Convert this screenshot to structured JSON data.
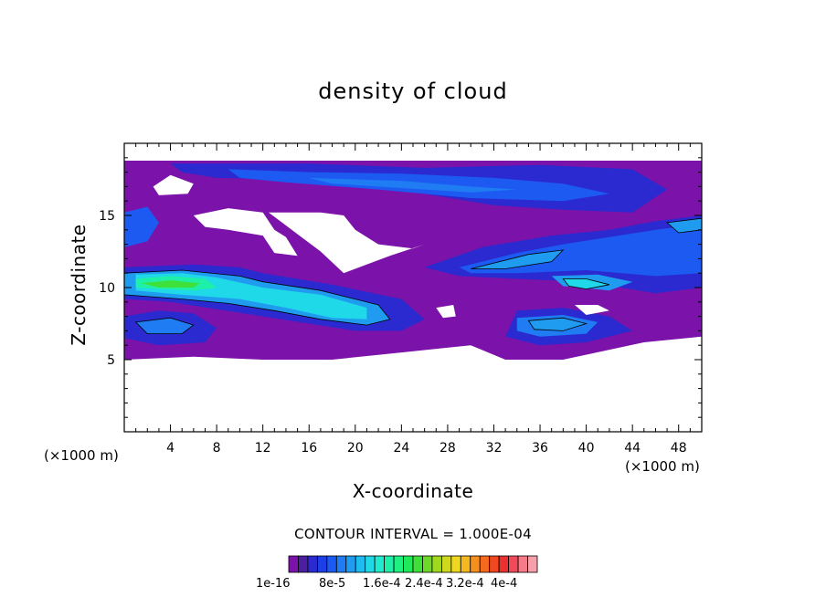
{
  "chart_data": {
    "type": "heatmap",
    "title": "density of cloud",
    "xlabel": "X-coordinate",
    "ylabel": "Z-coordinate",
    "x_unit_left": "(×1000 m)",
    "x_unit_right": "(×1000 m)",
    "xlim": [
      0,
      50
    ],
    "ylim": [
      0,
      20
    ],
    "xticks": [
      4,
      8,
      12,
      16,
      20,
      24,
      28,
      32,
      36,
      40,
      44,
      48
    ],
    "yticks": [
      5,
      10,
      15
    ],
    "contour_interval_text": "CONTOUR INTERVAL = 1.000E-04",
    "colorbar": {
      "labels": [
        "1e-16",
        "8e-5",
        "1.6e-4",
        "2.4e-4",
        "3.2e-4",
        "4e-4"
      ],
      "colors": [
        "#7b12a9",
        "#4a1fa0",
        "#2b2ad0",
        "#1f3fe6",
        "#1d5af2",
        "#1f7cf2",
        "#1f9cf0",
        "#1fbcef",
        "#1fd8e8",
        "#1feccf",
        "#1ff0a8",
        "#1ff080",
        "#1fe85a",
        "#3fe03a",
        "#6ed828",
        "#a0d81f",
        "#cfd81f",
        "#eed81f",
        "#f5b81f",
        "#f5901f",
        "#f56a1f",
        "#f0481f",
        "#ec2f2f",
        "#f04a5a",
        "#f57a8a",
        "#f5a0aa"
      ]
    },
    "regions": [
      {
        "level": 0,
        "color": "#7b12a9",
        "pts": [
          [
            0,
            18.8
          ],
          [
            50,
            18.8
          ],
          [
            50,
            6.6
          ],
          [
            45,
            6.2
          ],
          [
            38,
            5.0
          ],
          [
            33,
            5.0
          ],
          [
            30,
            6.0
          ],
          [
            24,
            5.5
          ],
          [
            18,
            5.0
          ],
          [
            12,
            5.0
          ],
          [
            6,
            5.2
          ],
          [
            0,
            5.0
          ]
        ]
      },
      {
        "level": 1,
        "color": "#2b2ad0",
        "pts": [
          [
            4,
            18.6
          ],
          [
            16,
            18.6
          ],
          [
            26,
            18.3
          ],
          [
            36,
            18.5
          ],
          [
            44,
            18.2
          ],
          [
            47,
            16.8
          ],
          [
            44,
            15.2
          ],
          [
            38,
            15.4
          ],
          [
            32,
            15.7
          ],
          [
            26,
            16.5
          ],
          [
            20,
            17.0
          ],
          [
            14,
            17.5
          ],
          [
            8,
            17.6
          ],
          [
            5,
            18.0
          ]
        ]
      },
      {
        "level": 2,
        "color": "#1d5af2",
        "pts": [
          [
            9,
            18.2
          ],
          [
            16,
            18.0
          ],
          [
            24,
            17.9
          ],
          [
            32,
            17.6
          ],
          [
            38,
            17.2
          ],
          [
            42,
            16.5
          ],
          [
            38,
            16.0
          ],
          [
            30,
            16.2
          ],
          [
            22,
            16.8
          ],
          [
            14,
            17.3
          ],
          [
            10,
            17.6
          ]
        ]
      },
      {
        "level": 3,
        "color": "#1f7cf2",
        "pts": [
          [
            16,
            17.6
          ],
          [
            24,
            17.4
          ],
          [
            30,
            17.0
          ],
          [
            34,
            16.8
          ],
          [
            30,
            16.6
          ],
          [
            24,
            16.9
          ],
          [
            18,
            17.2
          ]
        ]
      },
      {
        "level": 0,
        "color": "#1d5af2",
        "pts": [
          [
            0,
            15.2
          ],
          [
            2,
            15.6
          ],
          [
            3,
            14.5
          ],
          [
            2,
            13.2
          ],
          [
            0,
            12.8
          ]
        ]
      },
      {
        "level": 1,
        "color": "#2b2ad0",
        "pts": [
          [
            0,
            11.4
          ],
          [
            6,
            11.6
          ],
          [
            10,
            11.4
          ],
          [
            12,
            11.0
          ],
          [
            18,
            10.2
          ],
          [
            24,
            9.2
          ],
          [
            26,
            7.8
          ],
          [
            24,
            7.0
          ],
          [
            20,
            7.0
          ],
          [
            16,
            7.5
          ],
          [
            12,
            8.0
          ],
          [
            8,
            8.5
          ],
          [
            4,
            9.0
          ],
          [
            0,
            9.2
          ]
        ]
      },
      {
        "level": 2,
        "color": "#1f9cf0",
        "pts": [
          [
            0,
            11.0
          ],
          [
            5,
            11.2
          ],
          [
            10,
            10.8
          ],
          [
            12,
            10.4
          ],
          [
            17,
            9.8
          ],
          [
            22,
            8.8
          ],
          [
            23,
            7.8
          ],
          [
            21,
            7.4
          ],
          [
            17,
            7.8
          ],
          [
            13,
            8.4
          ],
          [
            9,
            8.9
          ],
          [
            5,
            9.2
          ],
          [
            0,
            9.5
          ]
        ]
      },
      {
        "level": 3,
        "color": "#1fd8e8",
        "pts": [
          [
            1,
            10.9
          ],
          [
            5,
            11.0
          ],
          [
            8,
            10.7
          ],
          [
            12,
            10.0
          ],
          [
            17,
            9.5
          ],
          [
            21,
            8.6
          ],
          [
            21,
            7.8
          ],
          [
            18,
            7.9
          ],
          [
            14,
            8.6
          ],
          [
            10,
            9.2
          ],
          [
            5,
            9.5
          ],
          [
            1,
            9.8
          ]
        ]
      },
      {
        "level": 4,
        "color": "#1ff0a8",
        "pts": [
          [
            1,
            10.6
          ],
          [
            4,
            10.8
          ],
          [
            7,
            10.6
          ],
          [
            8,
            10.0
          ],
          [
            6,
            9.8
          ],
          [
            3,
            9.9
          ],
          [
            1,
            10.0
          ]
        ]
      },
      {
        "level": 5,
        "color": "#3fe03a",
        "pts": [
          [
            1.5,
            10.3
          ],
          [
            4,
            10.5
          ],
          [
            6.5,
            10.3
          ],
          [
            6,
            10.0
          ],
          [
            3,
            10.0
          ]
        ]
      },
      {
        "level": 1,
        "color": "#2b2ad0",
        "pts": [
          [
            0,
            8.0
          ],
          [
            3,
            8.4
          ],
          [
            6,
            8.2
          ],
          [
            8,
            7.2
          ],
          [
            7,
            6.2
          ],
          [
            3,
            6.0
          ],
          [
            0,
            6.5
          ]
        ]
      },
      {
        "level": 2,
        "color": "#1f7cf2",
        "pts": [
          [
            1,
            7.6
          ],
          [
            4,
            7.9
          ],
          [
            6,
            7.4
          ],
          [
            5,
            6.8
          ],
          [
            2,
            6.8
          ]
        ]
      },
      {
        "level": 1,
        "color": "#2b2ad0",
        "pts": [
          [
            26,
            11.4
          ],
          [
            31,
            12.8
          ],
          [
            37,
            13.6
          ],
          [
            42,
            14.0
          ],
          [
            46,
            14.6
          ],
          [
            50,
            15.0
          ],
          [
            50,
            10.0
          ],
          [
            46,
            9.6
          ],
          [
            40,
            10.4
          ],
          [
            34,
            10.6
          ],
          [
            29,
            10.8
          ]
        ]
      },
      {
        "level": 2,
        "color": "#1d5af2",
        "pts": [
          [
            29,
            11.4
          ],
          [
            34,
            12.4
          ],
          [
            38,
            13.0
          ],
          [
            42,
            13.5
          ],
          [
            46,
            14.0
          ],
          [
            50,
            14.4
          ],
          [
            50,
            11.0
          ],
          [
            46,
            10.8
          ],
          [
            40,
            11.2
          ],
          [
            34,
            11.0
          ],
          [
            30,
            11.0
          ]
        ]
      },
      {
        "level": 3,
        "color": "#1f9cf0",
        "pts": [
          [
            30,
            11.3
          ],
          [
            35,
            12.3
          ],
          [
            38,
            12.6
          ],
          [
            37,
            11.8
          ],
          [
            33,
            11.3
          ]
        ]
      },
      {
        "level": 3,
        "color": "#1f9cf0",
        "pts": [
          [
            37,
            10.8
          ],
          [
            41,
            10.9
          ],
          [
            44,
            10.4
          ],
          [
            42,
            9.8
          ],
          [
            38,
            10.1
          ]
        ]
      },
      {
        "level": 3,
        "color": "#1fd8e8",
        "pts": [
          [
            38,
            10.6
          ],
          [
            40,
            10.6
          ],
          [
            42,
            10.2
          ],
          [
            40,
            9.9
          ],
          [
            38.5,
            10.1
          ]
        ]
      },
      {
        "level": 3,
        "color": "#1f9cf0",
        "pts": [
          [
            47,
            14.5
          ],
          [
            50,
            14.8
          ],
          [
            50,
            14.0
          ],
          [
            48,
            13.8
          ]
        ]
      },
      {
        "level": 1,
        "color": "#2b2ad0",
        "pts": [
          [
            34,
            8.4
          ],
          [
            38,
            8.6
          ],
          [
            42,
            8.0
          ],
          [
            44,
            7.0
          ],
          [
            40,
            6.2
          ],
          [
            36,
            6.0
          ],
          [
            33,
            6.6
          ]
        ]
      },
      {
        "level": 2,
        "color": "#1f7cf2",
        "pts": [
          [
            34,
            7.9
          ],
          [
            38,
            8.1
          ],
          [
            41,
            7.6
          ],
          [
            40,
            6.8
          ],
          [
            36,
            6.6
          ],
          [
            34,
            7.0
          ]
        ]
      },
      {
        "level": 3,
        "color": "#1f9cf0",
        "pts": [
          [
            35,
            7.7
          ],
          [
            38,
            7.9
          ],
          [
            40,
            7.5
          ],
          [
            38,
            7.0
          ],
          [
            35.5,
            7.1
          ]
        ]
      }
    ],
    "holes": [
      {
        "pts": [
          [
            2.5,
            17.0
          ],
          [
            4,
            17.8
          ],
          [
            6,
            17.2
          ],
          [
            5.5,
            16.5
          ],
          [
            3,
            16.4
          ]
        ]
      },
      {
        "pts": [
          [
            6,
            15.0
          ],
          [
            9,
            15.5
          ],
          [
            12,
            15.2
          ],
          [
            13,
            14.0
          ],
          [
            14,
            13.5
          ],
          [
            15,
            12.2
          ],
          [
            13,
            12.4
          ],
          [
            12,
            13.6
          ],
          [
            9,
            14.0
          ],
          [
            7,
            14.2
          ]
        ]
      },
      {
        "pts": [
          [
            12.5,
            15.2
          ],
          [
            17,
            15.2
          ],
          [
            19,
            15.0
          ],
          [
            20,
            14.0
          ],
          [
            22,
            13.0
          ],
          [
            25,
            12.7
          ],
          [
            26,
            13.0
          ],
          [
            23,
            12.2
          ],
          [
            19,
            11.0
          ],
          [
            17,
            12.5
          ],
          [
            14.5,
            14.0
          ]
        ]
      },
      {
        "pts": [
          [
            27,
            8.6
          ],
          [
            28.5,
            8.8
          ],
          [
            28.7,
            8.0
          ],
          [
            27.6,
            7.9
          ]
        ]
      },
      {
        "pts": [
          [
            39,
            8.8
          ],
          [
            41,
            8.8
          ],
          [
            42,
            8.4
          ],
          [
            40,
            8.1
          ]
        ]
      }
    ],
    "contour_lines": [
      {
        "pts": [
          [
            0,
            11.0
          ],
          [
            5,
            11.2
          ],
          [
            10,
            10.8
          ],
          [
            12,
            10.4
          ],
          [
            17,
            9.8
          ],
          [
            22,
            8.8
          ],
          [
            23,
            7.8
          ],
          [
            21,
            7.4
          ],
          [
            17,
            7.8
          ],
          [
            13,
            8.4
          ],
          [
            9,
            8.9
          ],
          [
            5,
            9.2
          ],
          [
            0,
            9.5
          ]
        ]
      },
      {
        "pts": [
          [
            30,
            11.3
          ],
          [
            35,
            12.3
          ],
          [
            38,
            12.6
          ],
          [
            37,
            11.8
          ],
          [
            33,
            11.3
          ]
        ]
      },
      {
        "pts": [
          [
            38,
            10.6
          ],
          [
            40,
            10.6
          ],
          [
            42,
            10.2
          ],
          [
            40,
            9.9
          ],
          [
            38.5,
            10.1
          ]
        ]
      },
      {
        "pts": [
          [
            47,
            14.5
          ],
          [
            50,
            14.8
          ],
          [
            50,
            14.0
          ],
          [
            48,
            13.8
          ]
        ]
      },
      {
        "pts": [
          [
            1,
            7.6
          ],
          [
            4,
            7.9
          ],
          [
            6,
            7.4
          ],
          [
            5,
            6.8
          ],
          [
            2,
            6.8
          ]
        ]
      },
      {
        "pts": [
          [
            35,
            7.7
          ],
          [
            38,
            7.9
          ],
          [
            40,
            7.5
          ],
          [
            38,
            7.0
          ],
          [
            35.5,
            7.1
          ]
        ]
      }
    ]
  }
}
